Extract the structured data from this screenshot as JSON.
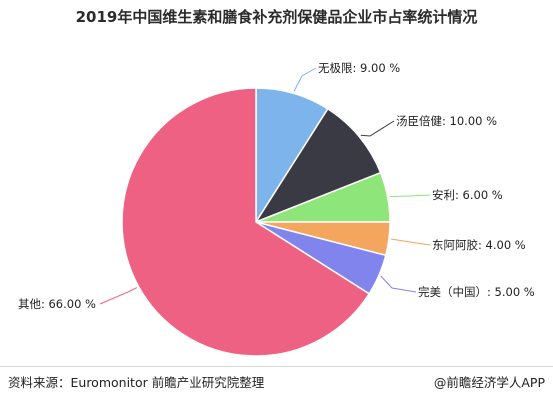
{
  "title": "2019年中国维生素和膳食补充剂保健品企业市占率统计情况",
  "footer": {
    "source": "资料来源：Euromonitor 前瞻产业研究院整理",
    "brand": "@前瞻经济学人APP"
  },
  "chart_data": {
    "type": "pie",
    "title": "2019年中国维生素和膳食补充剂保健品企业市占率统计情况",
    "slices": [
      {
        "label": "无极限: 9.00 %",
        "value": 9.0,
        "color": "#7eb4ec"
      },
      {
        "label": "汤臣倍健: 10.00 %",
        "value": 10.0,
        "color": "#3a3a44"
      },
      {
        "label": "安利: 6.00 %",
        "value": 6.0,
        "color": "#8ee57a"
      },
      {
        "label": "东阿阿胶: 4.00 %",
        "value": 4.0,
        "color": "#f4a65e"
      },
      {
        "label": "完美（中国）: 5.00 %",
        "value": 5.0,
        "color": "#8284ee"
      },
      {
        "label": "其他: 66.00 %",
        "value": 66.0,
        "color": "#ef6183"
      }
    ],
    "start_angle_deg": 0,
    "direction": "clockwise",
    "legend": "none"
  }
}
